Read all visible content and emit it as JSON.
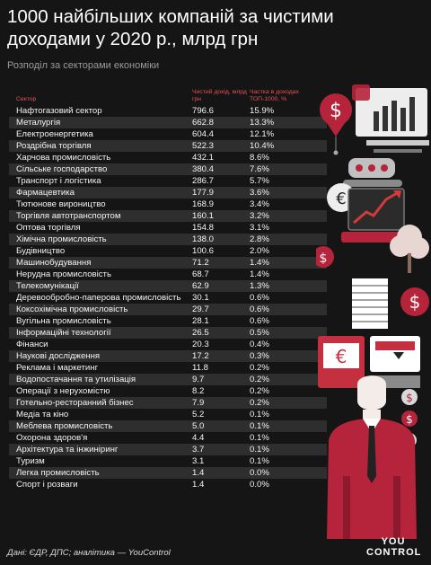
{
  "title": "1000 найбільших компаній за чистими доходами у 2020 р., млрд грн",
  "subtitle": "Розподіл за секторами економіки",
  "colors": {
    "background": "#151515",
    "accent": "#e8515a",
    "row_stripe": "#2e2e2e"
  },
  "chart_data": {
    "type": "table",
    "title": "1000 найбільших компаній за чистими доходами у 2020 р., млрд грн",
    "subtitle": "Розподіл за секторами економіки",
    "columns": [
      "Сектор",
      "Чистий дохід, млрд грн",
      "Частка в доходах ТОП-1000, %"
    ],
    "rows": [
      {
        "sector": "Нафтогазовий сектор",
        "value": "796.6",
        "share": "15.9%"
      },
      {
        "sector": "Металургія",
        "value": "662.8",
        "share": "13.3%"
      },
      {
        "sector": "Електроенергетика",
        "value": "604.4",
        "share": "12.1%"
      },
      {
        "sector": "Роздрібна торгівля",
        "value": "522.3",
        "share": "10.4%"
      },
      {
        "sector": "Харчова промисловість",
        "value": "432.1",
        "share": "8.6%"
      },
      {
        "sector": "Сільське господарство",
        "value": "380.4",
        "share": "7.6%"
      },
      {
        "sector": "Транспорт і логістика",
        "value": "286.7",
        "share": "5.7%"
      },
      {
        "sector": "Фармацевтика",
        "value": "177.9",
        "share": "3.6%"
      },
      {
        "sector": "Тютюнове вироництво",
        "value": "168.9",
        "share": "3.4%"
      },
      {
        "sector": "Торгівля автотранспортом",
        "value": "160.1",
        "share": "3.2%"
      },
      {
        "sector": "Оптова торгівля",
        "value": "154.8",
        "share": "3.1%"
      },
      {
        "sector": "Хімічна промисловість",
        "value": "138.0",
        "share": "2.8%"
      },
      {
        "sector": "Будівництво",
        "value": "100.6",
        "share": "2.0%"
      },
      {
        "sector": "Машинобудування",
        "value": "71.2",
        "share": "1.4%"
      },
      {
        "sector": "Нерудна промисловість",
        "value": "68.7",
        "share": "1.4%"
      },
      {
        "sector": "Телекомунікації",
        "value": "62.9",
        "share": "1.3%"
      },
      {
        "sector": "Деревообробно-паперова промисловість",
        "value": "30.1",
        "share": "0.6%"
      },
      {
        "sector": "Коксохімічна промисловість",
        "value": "29.7",
        "share": "0.6%"
      },
      {
        "sector": "Вугільна промисловість",
        "value": "28.1",
        "share": "0.6%"
      },
      {
        "sector": "Інформаційні технології",
        "value": "26.5",
        "share": "0.5%"
      },
      {
        "sector": "Фінанси",
        "value": "20.3",
        "share": "0.4%"
      },
      {
        "sector": "Наукові дослідження",
        "value": "17.2",
        "share": "0.3%"
      },
      {
        "sector": "Реклама і маркетинг",
        "value": "11.8",
        "share": "0.2%"
      },
      {
        "sector": "Водопостачання та утилізація",
        "value": "9.7",
        "share": "0.2%"
      },
      {
        "sector": "Операції з нерухомістю",
        "value": "8.2",
        "share": "0.2%"
      },
      {
        "sector": "Готельно-ресторанний бізнес",
        "value": "7.9",
        "share": "0.2%"
      },
      {
        "sector": "Медіа та кіно",
        "value": "5.2",
        "share": "0.1%"
      },
      {
        "sector": "Меблева промисловість",
        "value": "5.0",
        "share": "0.1%"
      },
      {
        "sector": "Охорона здоров'я",
        "value": "4.4",
        "share": "0.1%"
      },
      {
        "sector": "Архітектура та інжиніринг",
        "value": "3.7",
        "share": "0.1%"
      },
      {
        "sector": "Туризм",
        "value": "3.1",
        "share": "0.1%"
      },
      {
        "sector": "Легка промисловість",
        "value": "1.4",
        "share": "0.0%"
      },
      {
        "sector": "Спорт і розваги",
        "value": "1.4",
        "share": "0.0%"
      }
    ]
  },
  "header": {
    "sector": "Сектор",
    "value": "Чистий дохід, млрд грн",
    "share": "Частка в доходах ТОП-1000, %"
  },
  "footer": "Дані: ЄДР, ДПС; аналітика — YouControl",
  "logo": {
    "line1": "YOU",
    "line2": "CONTROL"
  },
  "icons": [
    "dollar-pin-icon",
    "euro-pin-icon",
    "rising-chart-monitor-icon",
    "bar-chart-board-icon",
    "businessman-icon",
    "tree-icon"
  ]
}
